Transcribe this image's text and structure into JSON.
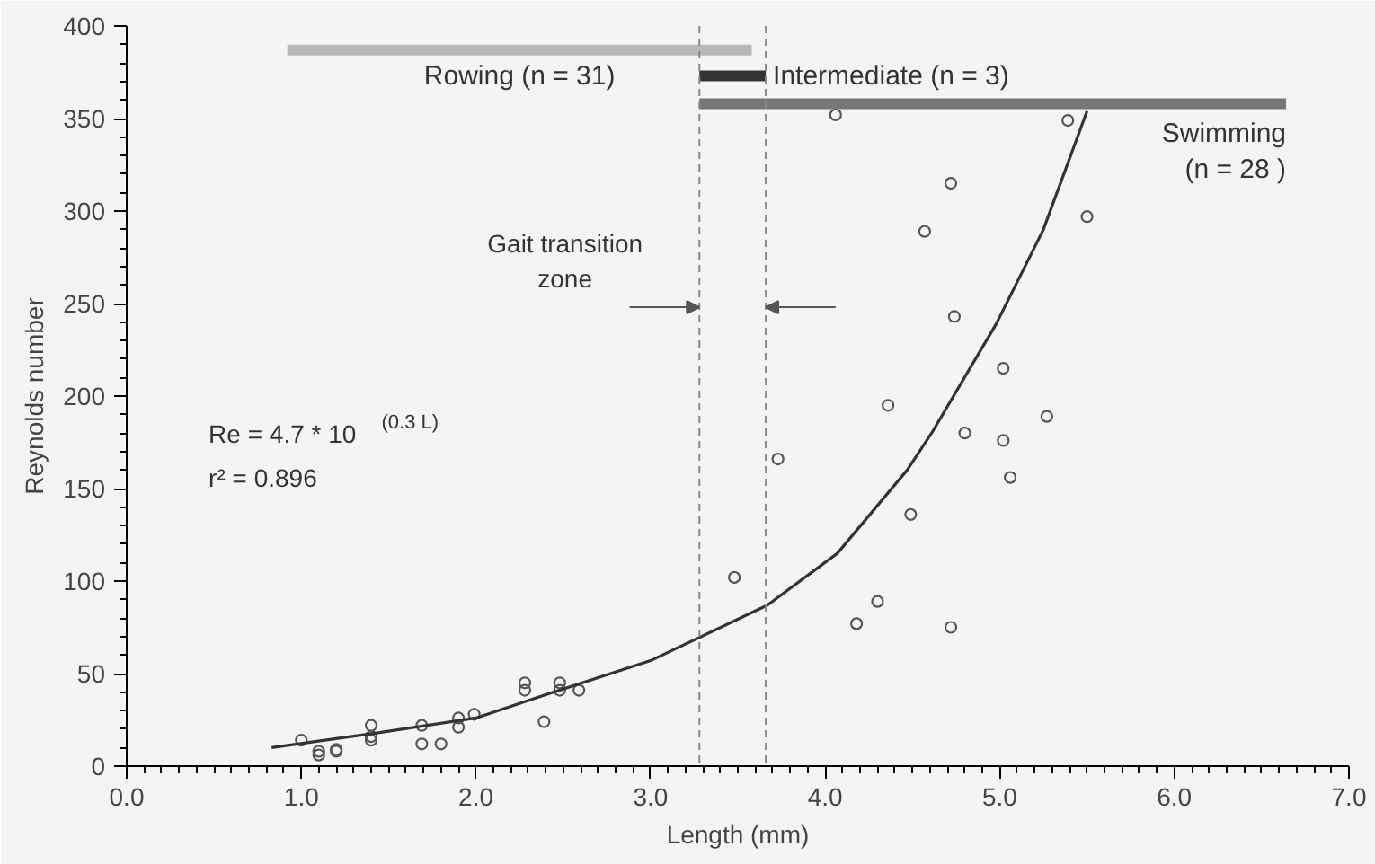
{
  "chart_data": {
    "type": "scatter",
    "xlabel": "Length (mm)",
    "ylabel": "Reynolds number",
    "xlim": [
      0,
      7
    ],
    "ylim": [
      0,
      400
    ],
    "xticks": [
      {
        "value": 0,
        "label": "0.0"
      },
      {
        "value": 1,
        "label": "1.0"
      },
      {
        "value": 2,
        "label": "2.0"
      },
      {
        "value": 3,
        "label": "3.0"
      },
      {
        "value": 4,
        "label": "4.0"
      },
      {
        "value": 5,
        "label": "5.0"
      },
      {
        "value": 6,
        "label": "6.0"
      },
      {
        "value": 7,
        "label": "7.0"
      }
    ],
    "yticks": [
      0,
      50,
      100,
      150,
      200,
      250,
      300,
      350,
      400
    ],
    "grid": false,
    "marker": "circle",
    "series": [
      {
        "color": "#555555",
        "x": [
          1.0,
          1.1,
          1.1,
          1.2,
          1.2,
          1.4,
          1.4,
          1.4,
          1.69,
          1.69,
          1.8,
          1.9,
          1.9,
          1.99,
          2.28,
          2.28,
          2.39,
          2.48,
          2.48,
          2.59,
          3.48,
          3.73,
          4.06,
          4.18,
          4.3,
          4.36,
          4.49,
          4.57,
          4.72,
          4.72,
          4.74,
          4.8,
          5.02,
          5.02,
          5.06,
          5.27,
          5.39,
          5.5
        ],
        "values": [
          14,
          6,
          8,
          8,
          9,
          22,
          16,
          14,
          22,
          12,
          12,
          26,
          21,
          28,
          45,
          41,
          24,
          45,
          41,
          41,
          102,
          166,
          352,
          77,
          89,
          195,
          136,
          289,
          315,
          75,
          243,
          180,
          215,
          176,
          156,
          189,
          349,
          297
        ]
      },
      {
        "type": "line",
        "color": "#333333",
        "line_style": "solid",
        "marker": "none",
        "x": [
          0.83,
          1.44,
          2.0,
          2.38,
          3.0,
          3.67,
          4.07,
          4.47,
          4.61,
          4.98,
          5.25,
          5.5
        ],
        "values": [
          10,
          18,
          26,
          38,
          57,
          87,
          115,
          160,
          180,
          239,
          290,
          354
        ]
      },
      {
        "type": "line",
        "name": "Rowing (n = 31)",
        "color": "#b8b8b8",
        "marker": "none",
        "x": [
          0.92,
          3.58
        ],
        "values": [
          387,
          387
        ]
      },
      {
        "type": "line",
        "name": "Intermediate (n = 3)",
        "color": "#333333",
        "marker": "none",
        "x": [
          3.28,
          3.66
        ],
        "values": [
          373,
          373
        ]
      },
      {
        "type": "line",
        "name": "Swimming\n(n = 28 )",
        "color": "#777777",
        "marker": "none",
        "x": [
          3.28,
          6.64
        ],
        "values": [
          358,
          358
        ]
      }
    ],
    "ref_lines": [
      {
        "axis": "x",
        "value": 3.28,
        "color": "#888888",
        "line_style": "dashed"
      },
      {
        "axis": "x",
        "value": 3.66,
        "color": "#888888",
        "line_style": "dashed"
      }
    ],
    "annotations": [
      "Gait transition\nzone",
      "Re = 4.7 * 10$^{(0.3 L)}$",
      "r² = 0.896"
    ]
  }
}
